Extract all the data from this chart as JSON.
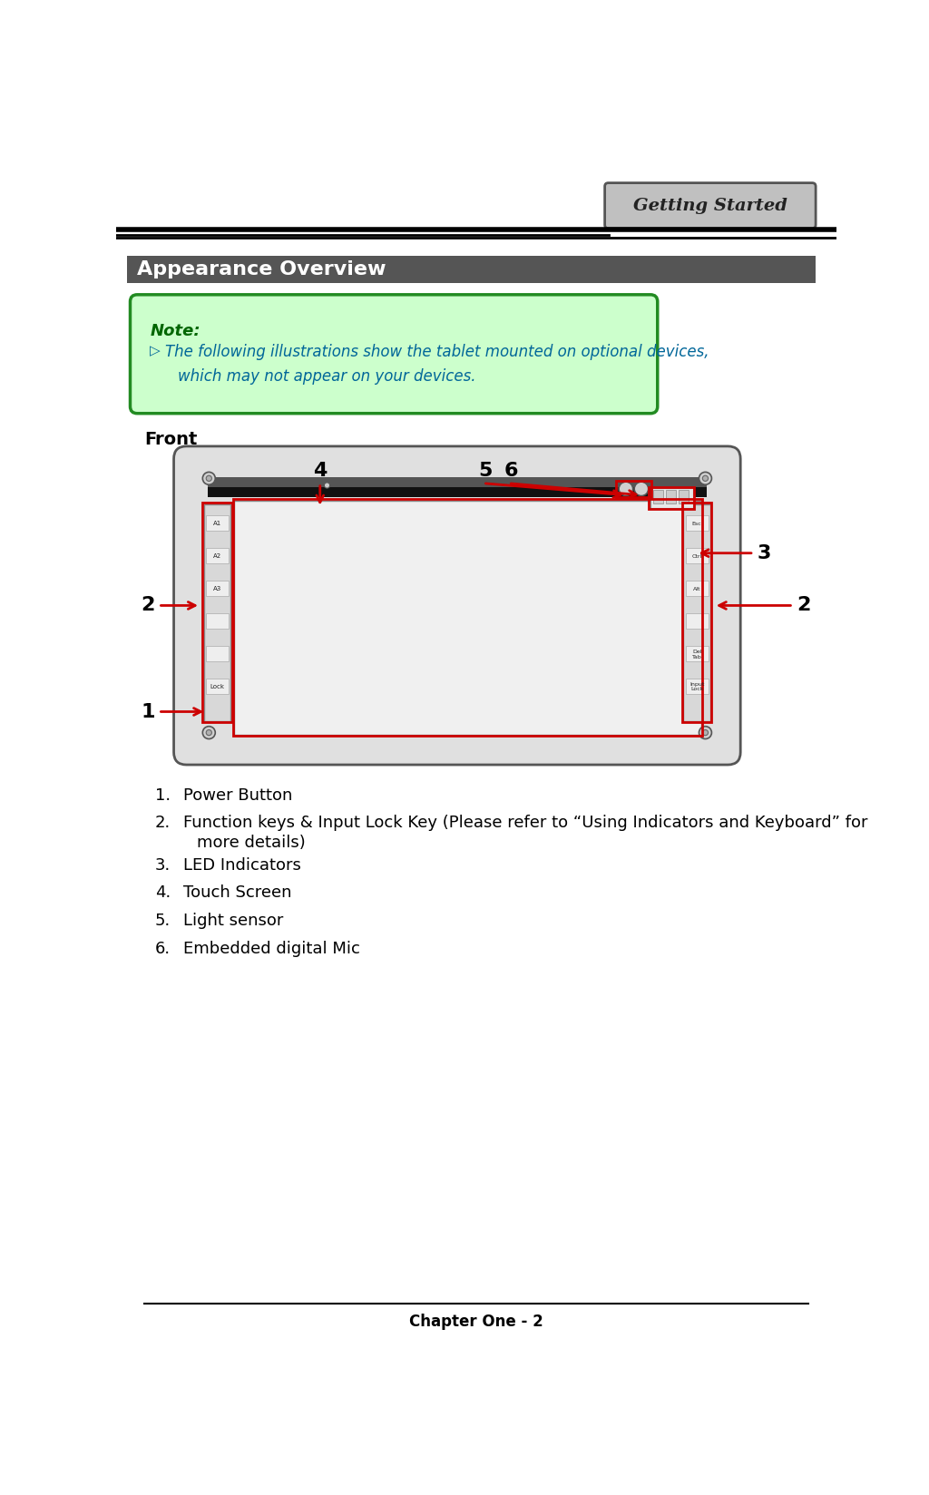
{
  "bg_color": "#ffffff",
  "header_tab_text": "Getting Started",
  "header_tab_bg": "#c0c0c0",
  "header_tab_border": "#555555",
  "header_line_color": "#000000",
  "section_header_text": "Appearance Overview",
  "section_header_bg": "#555555",
  "section_header_text_color": "#ffffff",
  "note_box_bg": "#ccffcc",
  "note_box_border": "#228B22",
  "note_title": "Note:",
  "note_title_color": "#006600",
  "note_text_color": "#006699",
  "note_text1": "The following illustrations show the tablet mounted on optional devices,",
  "note_text2": "which may not appear on your devices.",
  "front_label": "Front",
  "arrow_color": "#cc0000",
  "label_color": "#000000",
  "footer_text": "Chapter One - 2",
  "tablet_border_color": "#555555",
  "red_box_color": "#cc0000",
  "list_labels": [
    "Power Button",
    "Function keys & Input Lock Key (Please refer to “Using Indicators and Keyboard” for",
    "LED Indicators",
    "Touch Screen",
    "Light sensor",
    "Embedded digital Mic"
  ],
  "list_y_positions": [
    870,
    910,
    970,
    1010,
    1050,
    1090
  ]
}
